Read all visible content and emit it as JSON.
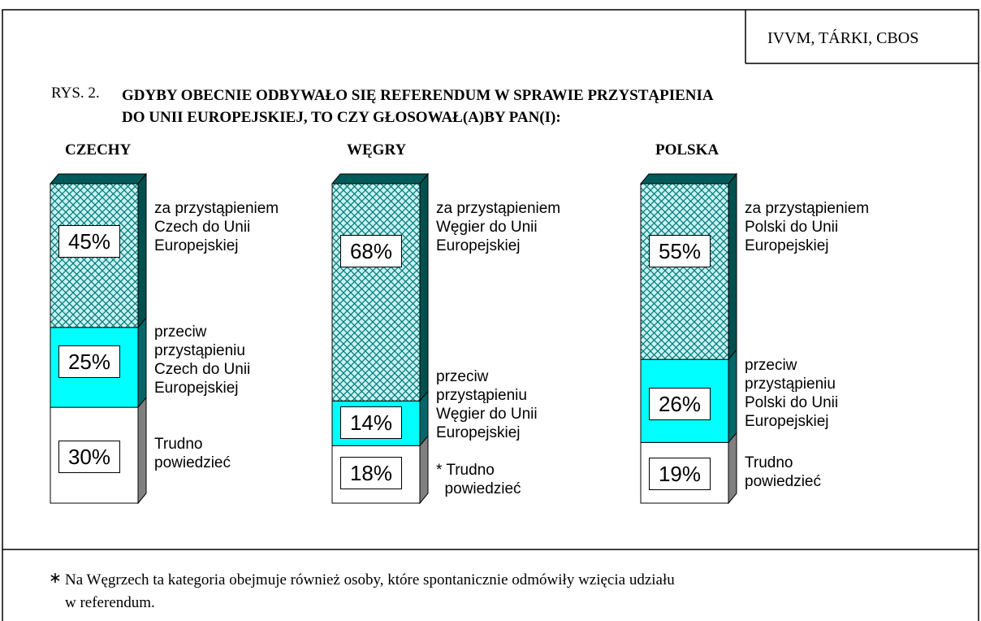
{
  "source": "IVVM, TÁRKI, CBOS",
  "figure_label": "RYS. 2.",
  "title": "GDYBY OBECNIE ODBYWAŁO SIĘ REFERENDUM W SPRAWIE PRZYSTĄPIENIA\nDO UNII EUROPEJSKIEJ, TO CZY GŁOSOWAŁ(A)BY PAN(I):",
  "footnote": {
    "marker": "∗",
    "text": "Na Węgrzech ta kategoria obejmuje również osoby, które spontanicznie odmówiły wzięcia udziału\nw referendum."
  },
  "chart_data": [
    {
      "type": "stacked-bar",
      "title": "CZECHY",
      "ylim": [
        0,
        100
      ],
      "series": [
        {
          "name": "Trudno\npowiedzieć",
          "color": "#ffffff",
          "values": [
            30
          ],
          "value_labels": [
            "30%"
          ]
        },
        {
          "name": "przeciw\nprzystąpieniu\nCzech do Unii\nEuropejskiej",
          "color": "#00ffff",
          "values": [
            25
          ],
          "value_labels": [
            "25%"
          ]
        },
        {
          "name": "za przystąpieniem\nCzech do Unii\nEuropejskiej",
          "color": "#008080",
          "pattern": "crosshatch",
          "values": [
            45
          ],
          "value_labels": [
            "45%"
          ]
        }
      ]
    },
    {
      "type": "stacked-bar",
      "title": "WĘGRY",
      "ylim": [
        0,
        100
      ],
      "series": [
        {
          "name": "* Trudno\n  powiedzieć",
          "color": "#ffffff",
          "values": [
            18
          ],
          "value_labels": [
            "18%"
          ]
        },
        {
          "name": "przeciw\nprzystąpieniu\nWęgier do Unii\nEuropejskiej",
          "color": "#00ffff",
          "values": [
            14
          ],
          "value_labels": [
            "14%"
          ]
        },
        {
          "name": "za przystąpieniem\nWęgier do Unii\nEuropejskiej",
          "color": "#008080",
          "pattern": "crosshatch",
          "values": [
            68
          ],
          "value_labels": [
            "68%"
          ]
        }
      ]
    },
    {
      "type": "stacked-bar",
      "title": "POLSKA",
      "ylim": [
        0,
        100
      ],
      "series": [
        {
          "name": "Trudno\npowiedzieć",
          "color": "#ffffff",
          "values": [
            19
          ],
          "value_labels": [
            "19%"
          ]
        },
        {
          "name": "przeciw\nprzystąpieniu\nPolski do Unii\nEuropejskiej",
          "color": "#00ffff",
          "values": [
            26
          ],
          "value_labels": [
            "26%"
          ]
        },
        {
          "name": "za przystąpieniem\nPolski do Unii\nEuropejskiej",
          "color": "#008080",
          "pattern": "crosshatch",
          "values": [
            55
          ],
          "value_labels": [
            "55%"
          ]
        }
      ]
    }
  ]
}
